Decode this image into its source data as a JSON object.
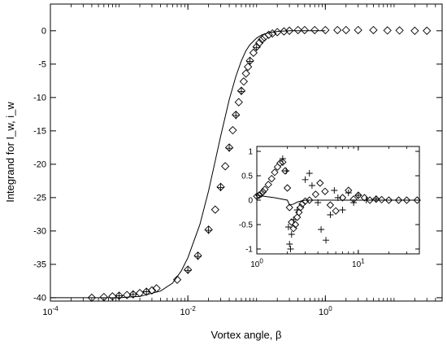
{
  "chart_data": [
    {
      "id": "main",
      "type": "scatter",
      "xlabel": "Vortex angle, β",
      "ylabel": "Integrand for I_w, i_w",
      "xscale": "log",
      "xlim": [
        0.0001,
        50
      ],
      "ylim": [
        -40.5,
        4
      ],
      "x_ticks": [
        {
          "value": 0.0001,
          "base": "10",
          "exp": "-4"
        },
        {
          "value": 0.01,
          "base": "10",
          "exp": "-2"
        },
        {
          "value": 1,
          "base": "10",
          "exp": "0"
        }
      ],
      "y_ticks": [
        0,
        -5,
        -10,
        -15,
        -20,
        -25,
        -30,
        -35,
        -40
      ],
      "grid": false,
      "legend": "none",
      "series": [
        {
          "marker": "diamond",
          "x": [
            0.0004,
            0.0006,
            0.0008,
            0.001,
            0.0013,
            0.0016,
            0.002,
            0.0025,
            0.003,
            0.0035,
            0.007,
            0.01,
            0.014,
            0.02,
            0.025,
            0.03,
            0.035,
            0.04,
            0.045,
            0.05,
            0.055,
            0.06,
            0.065,
            0.07,
            0.075,
            0.08,
            0.09,
            0.1,
            0.11,
            0.12,
            0.13,
            0.15,
            0.17,
            0.2,
            0.25,
            0.3,
            0.4,
            0.5,
            0.7,
            1,
            1.5,
            2,
            3,
            5,
            8,
            12,
            20,
            30
          ],
          "y": [
            -40,
            -39.9,
            -39.8,
            -39.7,
            -39.6,
            -39.5,
            -39.3,
            -39.1,
            -38.9,
            -38.6,
            -37.3,
            -35.8,
            -33.7,
            -29.8,
            -26.8,
            -23.4,
            -20.3,
            -17.5,
            -14.9,
            -12.6,
            -10.7,
            -9.0,
            -7.6,
            -6.4,
            -5.4,
            -4.5,
            -3.3,
            -2.4,
            -1.8,
            -1.3,
            -1.0,
            -0.6,
            -0.4,
            -0.2,
            -0.1,
            0.0,
            0.1,
            0.1,
            0.1,
            0.1,
            0.1,
            0.1,
            0.1,
            0.1,
            0.05,
            0.05,
            0.0,
            0.0
          ]
        },
        {
          "marker": "plus",
          "x": [
            0.001,
            0.0016,
            0.0025,
            0.01,
            0.014,
            0.02,
            0.03,
            0.04,
            0.05,
            0.06,
            0.08,
            0.1
          ],
          "y": [
            -39.7,
            -39.5,
            -39.1,
            -35.9,
            -33.8,
            -29.9,
            -23.5,
            -17.6,
            -12.7,
            -9.1,
            -4.6,
            -2.5
          ]
        },
        {
          "marker": "line",
          "x": [
            0.0001,
            0.0005,
            0.001,
            0.002,
            0.004,
            0.006,
            0.008,
            0.01,
            0.015,
            0.02,
            0.025,
            0.03,
            0.04,
            0.05,
            0.06,
            0.07,
            0.08,
            0.1,
            0.12,
            0.15,
            0.2,
            0.3,
            0.5,
            1
          ],
          "y": [
            -40,
            -40,
            -40,
            -39.8,
            -39.0,
            -37.8,
            -36.0,
            -34.0,
            -29.0,
            -24.0,
            -19.5,
            -15.8,
            -10.3,
            -6.8,
            -4.5,
            -3.0,
            -2.1,
            -1.1,
            -0.6,
            -0.3,
            -0.1,
            0,
            0,
            0
          ]
        }
      ]
    },
    {
      "id": "inset",
      "type": "scatter",
      "xscale": "log",
      "xlim": [
        1,
        40
      ],
      "ylim": [
        -1.1,
        1.1
      ],
      "x_ticks": [
        {
          "value": 1,
          "base": "10",
          "exp": "0"
        },
        {
          "value": 10,
          "base": "10",
          "exp": "1"
        }
      ],
      "y_ticks": [
        1,
        0.5,
        0,
        -0.5,
        -1
      ],
      "grid": false,
      "legend": "none",
      "series": [
        {
          "marker": "diamond",
          "x": [
            1.0,
            1.05,
            1.1,
            1.15,
            1.2,
            1.3,
            1.4,
            1.5,
            1.6,
            1.7,
            1.8,
            1.9,
            2.0,
            2.1,
            2.2,
            2.3,
            2.4,
            2.5,
            2.6,
            2.7,
            2.8,
            3.0,
            3.3,
            3.8,
            4.2,
            4.7,
            5.3,
            6,
            7,
            8,
            9,
            10,
            11.5,
            13,
            15,
            17,
            20,
            25,
            30,
            38
          ],
          "y": [
            0.08,
            0.1,
            0.13,
            0.17,
            0.22,
            0.32,
            0.44,
            0.57,
            0.68,
            0.76,
            0.78,
            0.6,
            0.25,
            -0.15,
            -0.45,
            -0.58,
            -0.5,
            -0.35,
            -0.25,
            -0.15,
            -0.08,
            -0.02,
            0.0,
            0.12,
            0.35,
            0.18,
            -0.1,
            -0.22,
            0.05,
            0.2,
            0.02,
            0.1,
            0.05,
            0.0,
            0.02,
            0.01,
            0.0,
            0.0,
            0.0,
            0.0
          ]
        },
        {
          "marker": "plus",
          "x": [
            1.8,
            1.95,
            2.05,
            2.1,
            2.15,
            2.2,
            2.3,
            2.5,
            3.0,
            3.3,
            3.5,
            4.0,
            4.3,
            4.8,
            5.3,
            5.8,
            6.3,
            7,
            8,
            9,
            10,
            12,
            15
          ],
          "y": [
            0.85,
            0.6,
            -0.55,
            -0.9,
            -1.0,
            -0.7,
            -0.4,
            -0.2,
            0.42,
            0.55,
            0.3,
            -0.05,
            -0.6,
            -0.82,
            -0.3,
            0.2,
            0.05,
            -0.2,
            0.15,
            -0.05,
            0.1,
            0.0,
            0.03
          ]
        },
        {
          "marker": "line",
          "x": [
            1.0,
            1.5,
            2.0,
            2.1,
            2.3,
            2.5,
            2.8,
            3.0,
            3.5,
            4,
            5,
            10,
            38
          ],
          "y": [
            0.1,
            0.05,
            0.0,
            -0.1,
            -0.08,
            -0.04,
            -0.01,
            0.0,
            0.0,
            0.0,
            0.0,
            0.0,
            0.0
          ]
        }
      ]
    }
  ]
}
